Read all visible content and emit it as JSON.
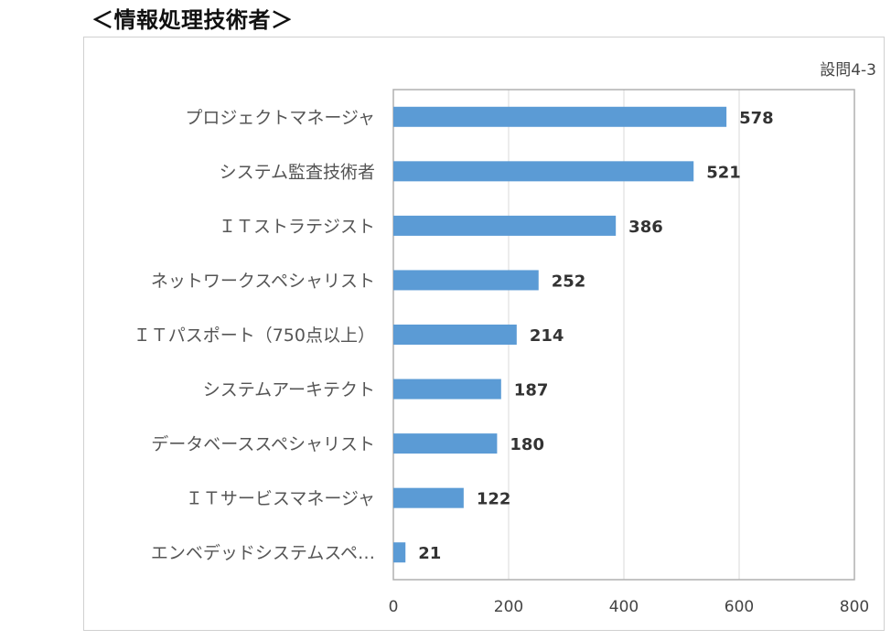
{
  "page_heading": "＜情報処理技術者＞",
  "chart_data": {
    "type": "bar",
    "orientation": "horizontal",
    "title": "",
    "corner_label": "設問4-3",
    "categories": [
      "プロジェクトマネージャ",
      "システム監査技術者",
      "ＩＴストラテジスト",
      "ネットワークスペシャリスト",
      "ＩＴパスポート（750点以上）",
      "システムアーキテクト",
      "データベーススペシャリスト",
      "ＩＴサービスマネージャ",
      "エンベデッドシステムスペ…"
    ],
    "values": [
      578,
      521,
      386,
      252,
      214,
      187,
      180,
      122,
      21
    ],
    "xlim": [
      0,
      800
    ],
    "ticks": [
      0,
      200,
      400,
      600,
      800
    ],
    "grid": true,
    "bar_color": "#5B9BD5"
  }
}
